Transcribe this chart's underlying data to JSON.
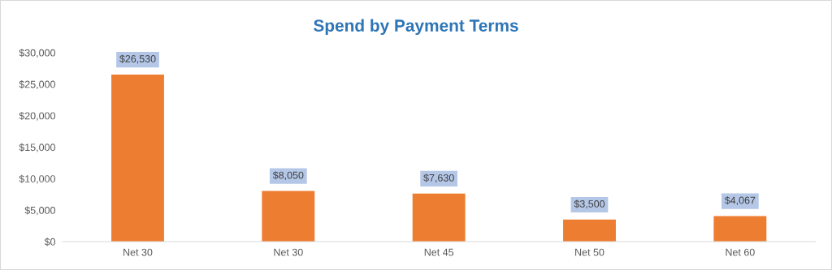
{
  "chart_data": {
    "type": "bar",
    "title": "Spend by Payment Terms",
    "categories": [
      "Net 30",
      "Net 30",
      "Net 45",
      "Net 50",
      "Net 60"
    ],
    "values": [
      26530,
      8050,
      7630,
      3500,
      4067
    ],
    "value_labels": [
      "$26,530",
      "$8,050",
      "$7,630",
      "$3,500",
      "$4,067"
    ],
    "color": "#ed7d31",
    "ylim": [
      0,
      30000
    ],
    "yticks": [
      {
        "value": 0,
        "label": "$0"
      },
      {
        "value": 5000,
        "label": "$5,000"
      },
      {
        "value": 10000,
        "label": "$10,000"
      },
      {
        "value": 15000,
        "label": "$15,000"
      },
      {
        "value": 20000,
        "label": "$20,000"
      },
      {
        "value": 25000,
        "label": "$25,000"
      },
      {
        "value": 30000,
        "label": "$30,000"
      }
    ],
    "grid": false,
    "legend": false
  }
}
